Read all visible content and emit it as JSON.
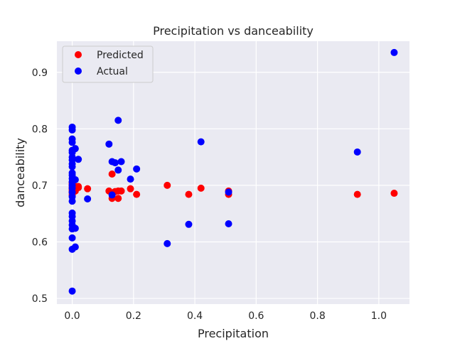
{
  "chart_data": {
    "type": "scatter",
    "title": "Precipitation vs danceability",
    "xlabel": "Precipitation",
    "ylabel": "danceability",
    "xlim": [
      -0.05,
      1.1
    ],
    "ylim": [
      0.49,
      0.955
    ],
    "xticks": [
      "0.0",
      "0.2",
      "0.4",
      "0.6",
      "0.8",
      "1.0"
    ],
    "xtick_values": [
      0.0,
      0.2,
      0.4,
      0.6,
      0.8,
      1.0
    ],
    "yticks": [
      "0.5",
      "0.6",
      "0.7",
      "0.8",
      "0.9"
    ],
    "ytick_values": [
      0.5,
      0.6,
      0.7,
      0.8,
      0.9
    ],
    "grid": true,
    "legend_position": "upper-left",
    "series": [
      {
        "name": "Predicted",
        "color": "#ff0000",
        "points": [
          [
            0.0,
            0.683
          ],
          [
            0.0,
            0.687
          ],
          [
            0.0,
            0.69
          ],
          [
            0.0,
            0.693
          ],
          [
            0.0,
            0.696
          ],
          [
            0.0,
            0.699
          ],
          [
            0.0,
            0.702
          ],
          [
            0.0,
            0.705
          ],
          [
            0.01,
            0.69
          ],
          [
            0.01,
            0.695
          ],
          [
            0.01,
            0.698
          ],
          [
            0.02,
            0.696
          ],
          [
            0.02,
            0.698
          ],
          [
            0.05,
            0.694
          ],
          [
            0.12,
            0.69
          ],
          [
            0.13,
            0.72
          ],
          [
            0.13,
            0.677
          ],
          [
            0.14,
            0.689
          ],
          [
            0.15,
            0.69
          ],
          [
            0.15,
            0.677
          ],
          [
            0.16,
            0.69
          ],
          [
            0.19,
            0.694
          ],
          [
            0.21,
            0.684
          ],
          [
            0.31,
            0.7
          ],
          [
            0.38,
            0.684
          ],
          [
            0.42,
            0.695
          ],
          [
            0.51,
            0.684
          ],
          [
            0.51,
            0.69
          ],
          [
            0.93,
            0.684
          ],
          [
            1.05,
            0.686
          ]
        ]
      },
      {
        "name": "Actual",
        "color": "#0000ff",
        "points": [
          [
            0.0,
            0.513
          ],
          [
            0.0,
            0.587
          ],
          [
            0.0,
            0.607
          ],
          [
            0.0,
            0.623
          ],
          [
            0.0,
            0.63
          ],
          [
            0.0,
            0.637
          ],
          [
            0.0,
            0.645
          ],
          [
            0.0,
            0.651
          ],
          [
            0.0,
            0.672
          ],
          [
            0.0,
            0.68
          ],
          [
            0.0,
            0.688
          ],
          [
            0.0,
            0.695
          ],
          [
            0.0,
            0.7
          ],
          [
            0.0,
            0.706
          ],
          [
            0.0,
            0.712
          ],
          [
            0.0,
            0.718
          ],
          [
            0.0,
            0.722
          ],
          [
            0.0,
            0.733
          ],
          [
            0.0,
            0.738
          ],
          [
            0.0,
            0.745
          ],
          [
            0.0,
            0.75
          ],
          [
            0.0,
            0.758
          ],
          [
            0.0,
            0.762
          ],
          [
            0.0,
            0.776
          ],
          [
            0.0,
            0.782
          ],
          [
            0.0,
            0.798
          ],
          [
            0.0,
            0.803
          ],
          [
            0.01,
            0.591
          ],
          [
            0.01,
            0.624
          ],
          [
            0.01,
            0.71
          ],
          [
            0.01,
            0.765
          ],
          [
            0.02,
            0.746
          ],
          [
            0.05,
            0.676
          ],
          [
            0.12,
            0.773
          ],
          [
            0.13,
            0.742
          ],
          [
            0.13,
            0.683
          ],
          [
            0.14,
            0.74
          ],
          [
            0.15,
            0.815
          ],
          [
            0.15,
            0.727
          ],
          [
            0.16,
            0.742
          ],
          [
            0.19,
            0.711
          ],
          [
            0.21,
            0.729
          ],
          [
            0.31,
            0.597
          ],
          [
            0.38,
            0.631
          ],
          [
            0.42,
            0.777
          ],
          [
            0.51,
            0.632
          ],
          [
            0.51,
            0.688
          ],
          [
            0.93,
            0.759
          ],
          [
            1.05,
            0.935
          ]
        ]
      }
    ]
  }
}
